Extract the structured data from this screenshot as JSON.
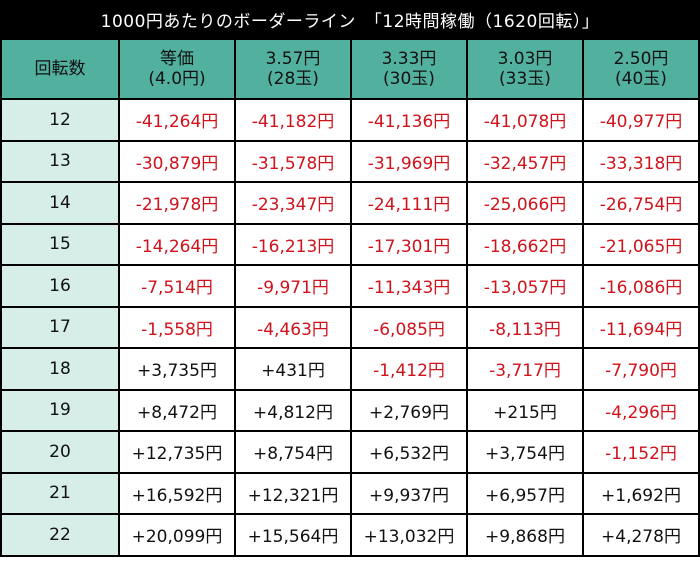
{
  "title": "1000円あたりのボーダーライン　「12時間稼働（1620回転）」",
  "header": {
    "first": "回転数",
    "columns": [
      {
        "line1": "等価",
        "line2": "(4.0円)"
      },
      {
        "line1": "3.57円",
        "line2": "(28玉)"
      },
      {
        "line1": "3.33円",
        "line2": "(30玉)"
      },
      {
        "line1": "3.03円",
        "line2": "(33玉)"
      },
      {
        "line1": "2.50円",
        "line2": "(40玉)"
      }
    ]
  },
  "rows": [
    {
      "spin": "12",
      "cells": [
        "-41,264円",
        "-41,182円",
        "-41,136円",
        "-41,078円",
        "-40,977円"
      ]
    },
    {
      "spin": "13",
      "cells": [
        "-30,879円",
        "-31,578円",
        "-31,969円",
        "-32,457円",
        "-33,318円"
      ]
    },
    {
      "spin": "14",
      "cells": [
        "-21,978円",
        "-23,347円",
        "-24,111円",
        "-25,066円",
        "-26,754円"
      ]
    },
    {
      "spin": "15",
      "cells": [
        "-14,264円",
        "-16,213円",
        "-17,301円",
        "-18,662円",
        "-21,065円"
      ]
    },
    {
      "spin": "16",
      "cells": [
        "-7,514円",
        "-9,971円",
        "-11,343円",
        "-13,057円",
        "-16,086円"
      ]
    },
    {
      "spin": "17",
      "cells": [
        "-1,558円",
        "-4,463円",
        "-6,085円",
        "-8,113円",
        "-11,694円"
      ]
    },
    {
      "spin": "18",
      "cells": [
        "+3,735円",
        "+431円",
        "-1,412円",
        "-3,717円",
        "-7,790円"
      ]
    },
    {
      "spin": "19",
      "cells": [
        "+8,472円",
        "+4,812円",
        "+2,769円",
        "+215円",
        "-4,296円"
      ]
    },
    {
      "spin": "20",
      "cells": [
        "+12,735円",
        "+8,754円",
        "+6,532円",
        "+3,754円",
        "-1,152円"
      ]
    },
    {
      "spin": "21",
      "cells": [
        "+16,592円",
        "+12,321円",
        "+9,937円",
        "+6,957円",
        "+1,692円"
      ]
    },
    {
      "spin": "22",
      "cells": [
        "+20,099円",
        "+15,564円",
        "+13,032円",
        "+9,868円",
        "+4,278円"
      ]
    }
  ],
  "colors": {
    "header_bg": "#52b09e",
    "spin_bg": "#d7ede8",
    "negative": "#d0121b",
    "positive": "#111111"
  }
}
